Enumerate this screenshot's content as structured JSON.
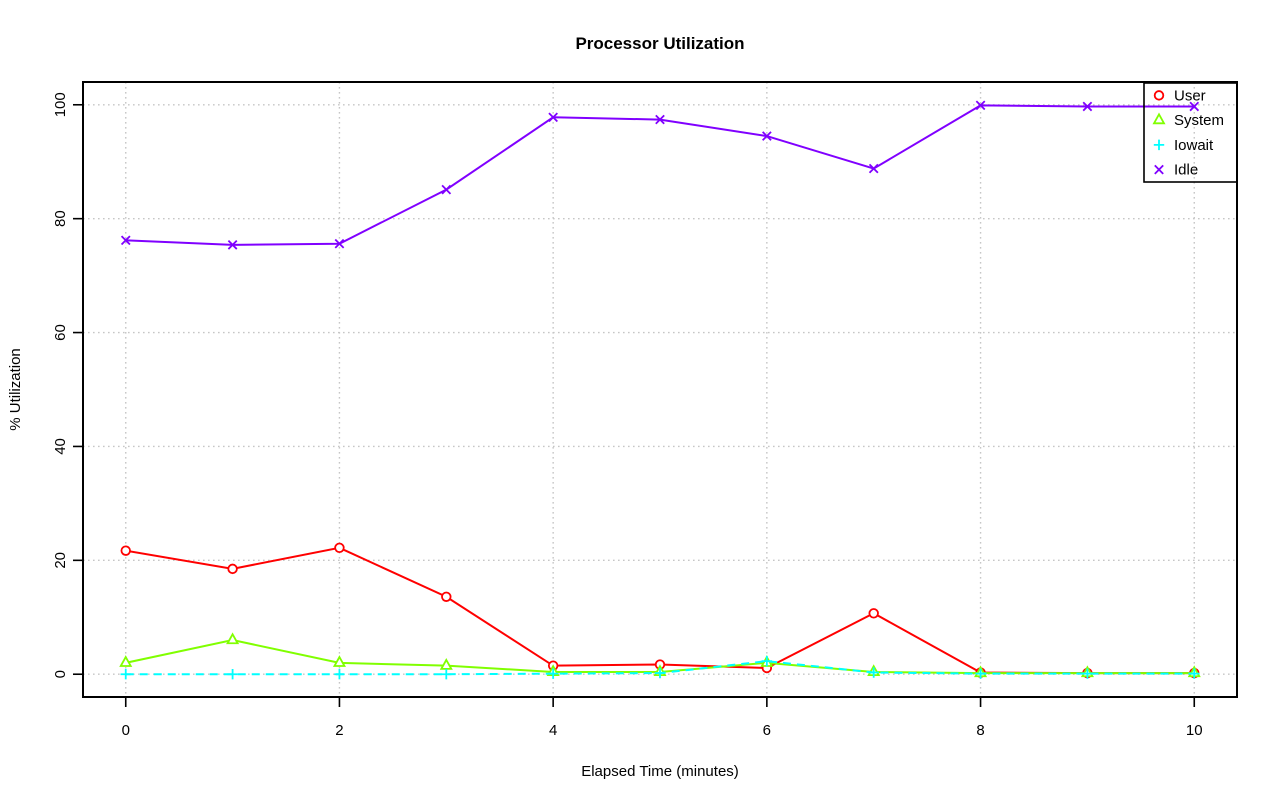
{
  "figure": {
    "background": "#ffffff",
    "border_color": "#000000",
    "grid_color": "#c6c6c6"
  },
  "chart_data": {
    "type": "line",
    "title": "Processor Utilization",
    "xlabel": "Elapsed Time (minutes)",
    "ylabel": "% Utilization",
    "x": [
      0,
      1,
      2,
      3,
      4,
      5,
      6,
      7,
      8,
      9,
      10
    ],
    "xlim": [
      0,
      10
    ],
    "ylim": [
      0,
      100
    ],
    "x_ticks": [
      "0",
      "2",
      "4",
      "6",
      "8",
      "10"
    ],
    "x_tick_values": [
      0,
      2,
      4,
      6,
      8,
      10
    ],
    "y_ticks": [
      "0",
      "20",
      "40",
      "60",
      "80",
      "100"
    ],
    "y_tick_values": [
      0,
      20,
      40,
      60,
      80,
      100
    ],
    "grid": "dotted",
    "legend_position": "topright",
    "series": [
      {
        "name": "User",
        "color": "#FF0000",
        "marker": "circle",
        "line": "solid",
        "values": [
          21.7,
          18.5,
          22.2,
          13.6,
          1.5,
          1.7,
          1.1,
          10.7,
          0.3,
          0.2,
          0.2
        ]
      },
      {
        "name": "System",
        "color": "#80FF00",
        "marker": "triangle",
        "line": "solid",
        "values": [
          2.0,
          6.0,
          2.0,
          1.5,
          0.4,
          0.4,
          2.0,
          0.4,
          0.2,
          0.2,
          0.2
        ]
      },
      {
        "name": "Iowait",
        "color": "#00FFFF",
        "marker": "plus",
        "line": "dashed",
        "values": [
          0.0,
          0.0,
          0.0,
          0.0,
          0.1,
          0.2,
          2.3,
          0.3,
          0.1,
          0.1,
          0.1
        ]
      },
      {
        "name": "Idle",
        "color": "#8000FF",
        "marker": "x",
        "line": "solid",
        "values": [
          76.2,
          75.4,
          75.6,
          85.1,
          97.8,
          97.4,
          94.5,
          88.8,
          99.9,
          99.7,
          99.7
        ]
      }
    ]
  }
}
